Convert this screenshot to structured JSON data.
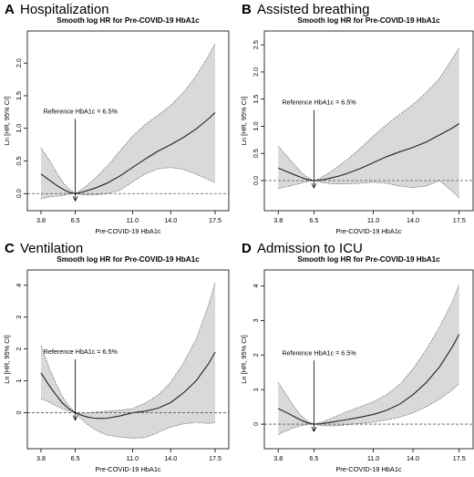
{
  "chart_data": [
    {
      "letter": "A",
      "heading": "Hospitalization",
      "type": "line",
      "title": "Smooth log HR for Pre-COVID-19 HbA1c",
      "xlabel": "Pre-COVID-19 HbA1c",
      "ylabel": "Ln [HR, 95% CI]",
      "xticks": [
        3.8,
        6.5,
        11.0,
        14.0,
        17.5
      ],
      "yticks": [
        0.0,
        0.5,
        1.0,
        1.5,
        2.0
      ],
      "xlim": [
        3.3,
        18.0
      ],
      "ylim": [
        -0.15,
        2.38
      ],
      "reference_x": 6.5,
      "reference_label": "Reference HbA1c = 6.5%",
      "annotation_y": 1.23,
      "x": [
        3.8,
        4.5,
        5.0,
        5.5,
        6.0,
        6.5,
        7.0,
        7.5,
        8.0,
        8.5,
        9.0,
        10.0,
        11.0,
        12.0,
        13.0,
        14.0,
        15.0,
        16.0,
        17.0,
        17.5
      ],
      "series": [
        {
          "name": "Estimate",
          "values": [
            0.3,
            0.2,
            0.13,
            0.07,
            0.02,
            0.0,
            0.02,
            0.05,
            0.08,
            0.12,
            0.16,
            0.27,
            0.4,
            0.53,
            0.65,
            0.75,
            0.86,
            0.99,
            1.15,
            1.24
          ]
        },
        {
          "name": "Upper 95% CI",
          "values": [
            0.7,
            0.5,
            0.33,
            0.18,
            0.07,
            0.0,
            0.06,
            0.14,
            0.22,
            0.32,
            0.42,
            0.65,
            0.88,
            1.06,
            1.2,
            1.35,
            1.55,
            1.8,
            2.12,
            2.3
          ]
        },
        {
          "name": "Lower 95% CI",
          "values": [
            -0.08,
            -0.05,
            -0.04,
            -0.03,
            -0.01,
            0.0,
            -0.02,
            -0.02,
            -0.02,
            -0.01,
            0.0,
            0.05,
            0.18,
            0.3,
            0.38,
            0.4,
            0.37,
            0.3,
            0.21,
            0.17
          ]
        }
      ]
    },
    {
      "letter": "B",
      "heading": "Assisted breathing",
      "type": "line",
      "title": "Smooth log HR for Pre-COVID-19 HbA1c",
      "xlabel": "Pre-COVID-19 HbA1c",
      "ylabel": "Ln [HR, 95% CI]",
      "xticks": [
        3.8,
        6.5,
        11.0,
        14.0,
        17.5
      ],
      "yticks": [
        0.0,
        0.5,
        1.0,
        1.5,
        2.0,
        2.5
      ],
      "xlim": [
        3.3,
        18.0
      ],
      "ylim": [
        -0.42,
        2.62
      ],
      "reference_x": 6.5,
      "reference_label": "Reference HbA1c = 6.5%",
      "annotation_y": 1.4,
      "x": [
        3.8,
        4.5,
        5.0,
        5.5,
        6.0,
        6.5,
        7.0,
        7.5,
        8.0,
        8.5,
        9.0,
        10.0,
        11.0,
        12.0,
        13.0,
        14.0,
        15.0,
        16.0,
        17.0,
        17.5
      ],
      "series": [
        {
          "name": "Estimate",
          "values": [
            0.23,
            0.16,
            0.11,
            0.06,
            0.02,
            0.0,
            0.01,
            0.03,
            0.06,
            0.09,
            0.13,
            0.22,
            0.33,
            0.44,
            0.53,
            0.61,
            0.71,
            0.84,
            0.97,
            1.05
          ]
        },
        {
          "name": "Upper 95% CI",
          "values": [
            0.63,
            0.44,
            0.3,
            0.16,
            0.06,
            0.0,
            0.05,
            0.12,
            0.2,
            0.29,
            0.38,
            0.59,
            0.82,
            1.03,
            1.22,
            1.4,
            1.62,
            1.88,
            2.25,
            2.45
          ]
        },
        {
          "name": "Lower 95% CI",
          "values": [
            -0.15,
            -0.11,
            -0.08,
            -0.05,
            -0.02,
            0.0,
            -0.03,
            -0.05,
            -0.06,
            -0.06,
            -0.06,
            -0.05,
            -0.03,
            -0.05,
            -0.1,
            -0.13,
            -0.1,
            0.0,
            -0.2,
            -0.32
          ]
        }
      ]
    },
    {
      "letter": "C",
      "heading": "Ventilation",
      "type": "line",
      "title": "Smooth log HR for Pre-COVID-19 HbA1c",
      "xlabel": "Pre-COVID-19 HbA1c",
      "ylabel": "Ln [HR, 95% CI]",
      "xticks": [
        3.8,
        6.5,
        11.0,
        14.0,
        17.5
      ],
      "yticks": [
        0,
        1,
        2,
        3,
        4
      ],
      "xlim": [
        3.3,
        18.0
      ],
      "ylim": [
        -0.9,
        4.25
      ],
      "reference_x": 6.5,
      "reference_label": "Reference HbA1c = 6.5%",
      "annotation_y": 1.85,
      "x": [
        3.8,
        4.5,
        5.0,
        5.5,
        6.0,
        6.5,
        7.0,
        7.5,
        8.0,
        8.5,
        9.0,
        10.0,
        11.0,
        12.0,
        13.0,
        14.0,
        15.0,
        16.0,
        17.0,
        17.5
      ],
      "series": [
        {
          "name": "Estimate",
          "values": [
            1.25,
            0.82,
            0.55,
            0.3,
            0.12,
            0.0,
            -0.08,
            -0.14,
            -0.17,
            -0.18,
            -0.17,
            -0.1,
            0.0,
            0.05,
            0.14,
            0.32,
            0.62,
            1.0,
            1.55,
            1.9
          ]
        },
        {
          "name": "Upper 95% CI",
          "values": [
            2.1,
            1.35,
            0.9,
            0.5,
            0.2,
            0.0,
            -0.02,
            0.0,
            0.02,
            0.03,
            0.05,
            0.08,
            0.13,
            0.3,
            0.55,
            0.95,
            1.55,
            2.3,
            3.4,
            4.1
          ]
        },
        {
          "name": "Lower 95% CI",
          "values": [
            0.45,
            0.32,
            0.22,
            0.12,
            0.05,
            0.0,
            -0.2,
            -0.38,
            -0.52,
            -0.62,
            -0.7,
            -0.76,
            -0.8,
            -0.78,
            -0.62,
            -0.45,
            -0.35,
            -0.3,
            -0.34,
            -0.3
          ]
        }
      ]
    },
    {
      "letter": "D",
      "heading": "Admission to ICU",
      "type": "line",
      "title": "Smooth log HR for Pre-COVID-19 HbA1c",
      "xlabel": "Pre-COVID-19 HbA1c",
      "ylabel": "Ln [HR, 95% CI]",
      "xticks": [
        3.8,
        6.5,
        11.0,
        14.0,
        17.5
      ],
      "yticks": [
        0,
        1,
        2,
        3,
        4
      ],
      "xlim": [
        3.3,
        18.0
      ],
      "ylim": [
        -0.5,
        4.25
      ],
      "reference_x": 6.5,
      "reference_label": "Reference HbA1c = 6.5%",
      "annotation_y": 2.0,
      "x": [
        3.8,
        4.5,
        5.0,
        5.5,
        6.0,
        6.5,
        7.0,
        7.5,
        8.0,
        8.5,
        9.0,
        10.0,
        11.0,
        12.0,
        13.0,
        14.0,
        15.0,
        16.0,
        17.0,
        17.5
      ],
      "series": [
        {
          "name": "Estimate",
          "values": [
            0.45,
            0.32,
            0.22,
            0.12,
            0.04,
            0.0,
            0.01,
            0.04,
            0.07,
            0.1,
            0.13,
            0.2,
            0.28,
            0.4,
            0.58,
            0.85,
            1.2,
            1.65,
            2.25,
            2.6
          ]
        },
        {
          "name": "Upper 95% CI",
          "values": [
            1.2,
            0.8,
            0.5,
            0.26,
            0.09,
            0.0,
            0.05,
            0.12,
            0.2,
            0.28,
            0.36,
            0.5,
            0.65,
            0.85,
            1.15,
            1.6,
            2.15,
            2.8,
            3.55,
            4.05
          ]
        },
        {
          "name": "Lower 95% CI",
          "values": [
            -0.3,
            -0.18,
            -0.1,
            -0.05,
            -0.01,
            0.0,
            -0.04,
            -0.05,
            -0.05,
            -0.04,
            -0.02,
            0.02,
            0.06,
            0.12,
            0.2,
            0.33,
            0.5,
            0.72,
            1.0,
            1.18
          ]
        }
      ]
    }
  ]
}
